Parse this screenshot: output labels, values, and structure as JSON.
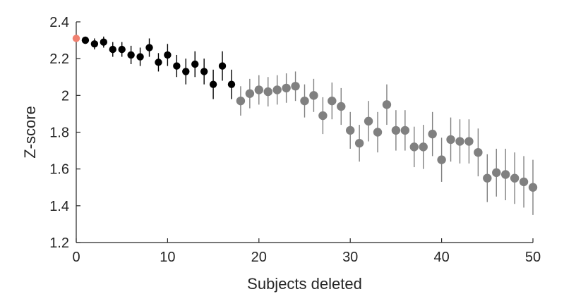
{
  "chart_data": {
    "type": "scatter",
    "xlabel": "Subjects deleted",
    "ylabel": "Z-score",
    "xlim": [
      0,
      50
    ],
    "ylim": [
      1.2,
      2.4
    ],
    "xticks": [
      "0",
      "10",
      "20",
      "30",
      "40",
      "50"
    ],
    "yticks": [
      "1.2",
      "1.4",
      "1.6",
      "1.8",
      "2",
      "2.2",
      "2.4"
    ],
    "grid": false,
    "legend": "none",
    "colors": {
      "baseline": "#f08070",
      "early": "#000000",
      "late": "#808080",
      "axis": "#262626"
    },
    "series": [
      {
        "group": "baseline",
        "x": [
          0
        ],
        "y": [
          2.31
        ],
        "err": [
          0
        ]
      },
      {
        "group": "early",
        "x": [
          1,
          2,
          3,
          4,
          5,
          6,
          7,
          8,
          9,
          10,
          11,
          12,
          13,
          14,
          15,
          16,
          17
        ],
        "y": [
          2.3,
          2.28,
          2.29,
          2.25,
          2.25,
          2.22,
          2.21,
          2.26,
          2.18,
          2.22,
          2.16,
          2.13,
          2.17,
          2.13,
          2.06,
          2.16,
          2.06
        ],
        "err": [
          0.02,
          0.03,
          0.03,
          0.04,
          0.04,
          0.05,
          0.05,
          0.05,
          0.05,
          0.06,
          0.06,
          0.07,
          0.07,
          0.07,
          0.08,
          0.08,
          0.08
        ]
      },
      {
        "group": "late",
        "x": [
          18,
          19,
          20,
          21,
          22,
          23,
          24,
          25,
          26,
          27,
          28,
          29,
          30,
          31,
          32,
          33,
          34,
          35,
          36,
          37,
          38,
          39,
          40,
          41,
          42,
          43,
          44,
          45,
          46,
          47,
          48,
          49,
          50
        ],
        "y": [
          1.97,
          2.01,
          2.03,
          2.02,
          2.03,
          2.04,
          2.05,
          1.97,
          2.0,
          1.89,
          1.97,
          1.94,
          1.81,
          1.74,
          1.86,
          1.8,
          1.95,
          1.81,
          1.81,
          1.72,
          1.72,
          1.79,
          1.65,
          1.76,
          1.75,
          1.75,
          1.69,
          1.55,
          1.58,
          1.57,
          1.55,
          1.53,
          1.5
        ],
        "err": [
          0.08,
          0.08,
          0.08,
          0.08,
          0.08,
          0.08,
          0.08,
          0.09,
          0.09,
          0.1,
          0.1,
          0.1,
          0.1,
          0.1,
          0.11,
          0.11,
          0.11,
          0.11,
          0.11,
          0.11,
          0.12,
          0.12,
          0.12,
          0.12,
          0.12,
          0.12,
          0.13,
          0.13,
          0.13,
          0.14,
          0.14,
          0.14,
          0.15
        ]
      }
    ]
  }
}
